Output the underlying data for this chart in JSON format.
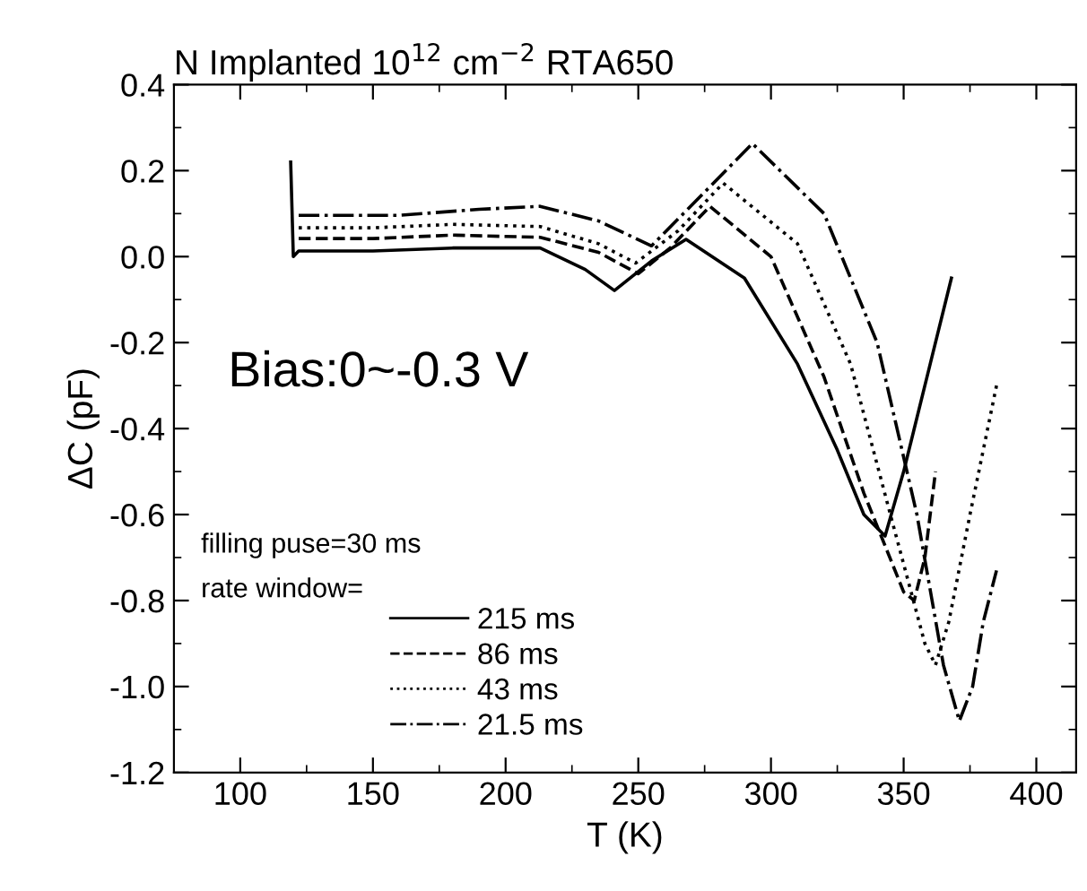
{
  "chart_data": {
    "type": "line",
    "title": "N Implanted 10$^{12}$ cm$^{−2}$ RTA650",
    "xlabel": "T (K)",
    "ylabel": "ΔC (pF)",
    "annotations": [
      "Bias:0~-0.3 V",
      "filling puse=30 ms",
      "rate window="
    ],
    "xlim": [
      75,
      415
    ],
    "ylim": [
      -1.2,
      0.4
    ],
    "xticks": [
      100,
      150,
      200,
      250,
      300,
      350,
      400
    ],
    "yticks": [
      {
        "value": -1.2,
        "label": "-1.2"
      },
      {
        "value": -1.0,
        "label": "-1.0"
      },
      {
        "value": -0.8,
        "label": "-0.8"
      },
      {
        "value": -0.6,
        "label": "-0.6"
      },
      {
        "value": -0.4,
        "label": "-0.4"
      },
      {
        "value": -0.2,
        "label": "-0.2"
      },
      {
        "value": 0,
        "label": "0.0"
      },
      {
        "value": 0.2,
        "label": "0.2"
      },
      {
        "value": 0.4,
        "label": "0.4"
      }
    ],
    "legend": "bottom left",
    "grid": false,
    "marker": "none",
    "series": [
      {
        "name": "215 ms",
        "color": "#000000",
        "line_style": "solid",
        "x": [
          119,
          120,
          122,
          150,
          180,
          213,
          230,
          241,
          255,
          268,
          290,
          310,
          325,
          335,
          343,
          350,
          360,
          366,
          368
        ],
        "values": [
          0.22,
          0.0,
          0.013,
          0.013,
          0.02,
          0.02,
          -0.03,
          -0.079,
          -0.01,
          0.04,
          -0.05,
          -0.25,
          -0.45,
          -0.6,
          -0.65,
          -0.5,
          -0.25,
          -0.1,
          -0.05
        ]
      },
      {
        "name": "86 ms",
        "color": "#000000",
        "line_style": "dashed",
        "x": [
          122,
          150,
          180,
          213,
          235,
          250,
          262,
          277,
          300,
          320,
          335,
          350,
          354,
          358,
          362
        ],
        "values": [
          0.042,
          0.042,
          0.05,
          0.045,
          0.01,
          -0.04,
          0.02,
          0.117,
          0.0,
          -0.28,
          -0.55,
          -0.78,
          -0.8,
          -0.7,
          -0.5
        ]
      },
      {
        "name": "43 ms",
        "color": "#000000",
        "line_style": "dotted",
        "x": [
          122,
          150,
          180,
          213,
          235,
          249,
          265,
          282,
          310,
          330,
          345,
          358,
          362,
          367,
          375,
          385
        ],
        "values": [
          0.067,
          0.067,
          0.075,
          0.07,
          0.03,
          -0.015,
          0.06,
          0.171,
          0.03,
          -0.25,
          -0.6,
          -0.9,
          -0.95,
          -0.85,
          -0.6,
          -0.3
        ]
      },
      {
        "name": "21.5 ms",
        "color": "#000000",
        "line_style": "dashdot",
        "x": [
          122,
          160,
          190,
          213,
          235,
          255,
          275,
          293,
          320,
          340,
          355,
          365,
          371,
          376,
          380,
          385
        ],
        "values": [
          0.096,
          0.096,
          0.11,
          0.117,
          0.083,
          0.025,
          0.15,
          0.263,
          0.1,
          -0.2,
          -0.6,
          -0.95,
          -1.08,
          -1.0,
          -0.85,
          -0.73
        ]
      }
    ]
  }
}
